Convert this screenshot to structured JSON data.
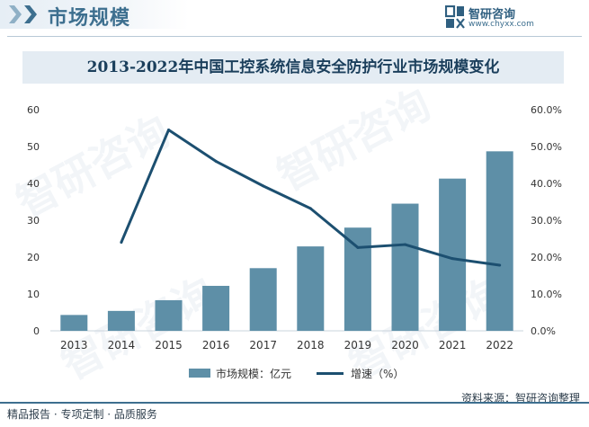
{
  "header": {
    "title": "市场规模",
    "brand_name": "智研咨询",
    "brand_url": "www.chyxx.com"
  },
  "watermark": {
    "text": "智研咨询"
  },
  "colors": {
    "bar": "#5e8fa7",
    "line": "#1c4f70",
    "accent": "#3d6f8f"
  },
  "chart_data": {
    "type": "bar",
    "title": "2013-2022年中国工控系统信息安全防护行业市场规模变化",
    "categories": [
      "2013",
      "2014",
      "2015",
      "2016",
      "2017",
      "2018",
      "2019",
      "2020",
      "2021",
      "2022"
    ],
    "series": [
      {
        "name": "市场规模：亿元",
        "type": "bar",
        "axis": "left",
        "values": [
          4.3,
          5.4,
          8.3,
          12.2,
          17.0,
          22.9,
          28.0,
          34.5,
          41.3,
          48.7
        ]
      },
      {
        "name": "增速（%）",
        "type": "line",
        "axis": "right",
        "values": [
          null,
          24.0,
          54.5,
          46.0,
          39.3,
          33.2,
          22.6,
          23.4,
          19.6,
          17.8
        ]
      }
    ],
    "y_left": {
      "min": 0,
      "max": 60,
      "ticks": [
        "0",
        "10",
        "20",
        "30",
        "40",
        "50",
        "60"
      ]
    },
    "y_right": {
      "min": 0,
      "max": 60,
      "ticks": [
        "0.0%",
        "10.0%",
        "20.0%",
        "30.0%",
        "40.0%",
        "50.0%",
        "60.0%"
      ]
    },
    "grid": false,
    "legend_position": "bottom"
  },
  "footer": {
    "left": "精品报告 · 专项定制 · 品质服务",
    "source": "资料来源：智研咨询整理"
  }
}
